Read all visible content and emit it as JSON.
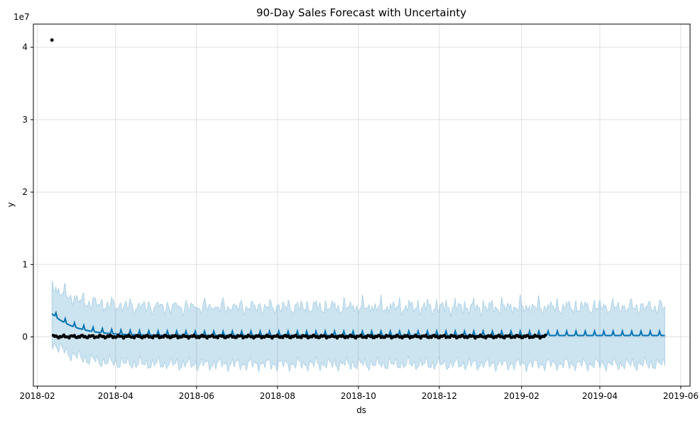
{
  "chart_data": {
    "type": "line",
    "title": "90-Day Sales Forecast with Uncertainty",
    "xlabel": "ds",
    "ylabel": "y",
    "y_multiplier_label": "1e7",
    "grid": true,
    "x_range": [
      "2018-01-29",
      "2019-06-08"
    ],
    "y_range": [
      -0.68,
      4.32
    ],
    "x_ticks": [
      "2018-02",
      "2018-04",
      "2018-06",
      "2018-08",
      "2018-10",
      "2018-12",
      "2019-02",
      "2019-04",
      "2019-06"
    ],
    "x_tick_dates": [
      "2018-02-01",
      "2018-04-01",
      "2018-06-01",
      "2018-08-01",
      "2018-10-01",
      "2018-12-01",
      "2019-02-01",
      "2019-04-01",
      "2019-06-01"
    ],
    "y_ticks": [
      0,
      1,
      2,
      3,
      4
    ],
    "y_tick_labels": [
      "0",
      "1",
      "2",
      "3",
      "4"
    ],
    "colors": {
      "forecast_line": "#0072B2",
      "interval_fill": "#0072B2",
      "observed_points": "#000000",
      "grid": "#d3d3d3"
    },
    "forecast": {
      "start": "2018-02-12",
      "end": "2019-05-20",
      "initial_level": 0.32,
      "decay_days": 18,
      "base_level": 0.02,
      "weekly_spike": 0.06,
      "interval_upper_offset": 0.38,
      "interval_lower_offset": 0.4
    },
    "observed": {
      "start": "2018-02-12",
      "end": "2019-02-19",
      "outlier": {
        "x": "2018-02-12",
        "y": 4.1
      },
      "level": 0.005
    }
  }
}
